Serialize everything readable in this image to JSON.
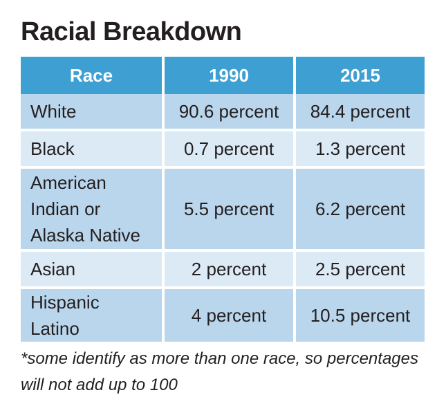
{
  "title": "Racial Breakdown",
  "note": "*some identify as more than one race, so percentages will not add up to 100",
  "colors": {
    "header_bg": "#3e9fd2",
    "row_dark": "#b9d6ec",
    "row_light": "#dceaf6",
    "text": "#231f20"
  },
  "chart_data": {
    "type": "table",
    "title": "Racial Breakdown",
    "columns": [
      "Race",
      "1990",
      "2015"
    ],
    "rows": [
      {
        "race": "White",
        "y1990": "90.6 percent",
        "y2015": "84.4 percent"
      },
      {
        "race": "Black",
        "y1990": "0.7 percent",
        "y2015": "1.3 percent"
      },
      {
        "race": "American Indian or Alaska Native",
        "y1990": "5.5 percent",
        "y2015": "6.2 percent"
      },
      {
        "race": "Asian",
        "y1990": "2 percent",
        "y2015": "2.5 percent"
      },
      {
        "race": "Hispanic Latino",
        "y1990": "4 percent",
        "y2015": "10.5 percent"
      }
    ],
    "series": [
      {
        "name": "1990",
        "values": [
          90.6,
          0.7,
          5.5,
          2,
          4
        ]
      },
      {
        "name": "2015",
        "values": [
          84.4,
          1.3,
          6.2,
          2.5,
          10.5
        ]
      }
    ]
  }
}
